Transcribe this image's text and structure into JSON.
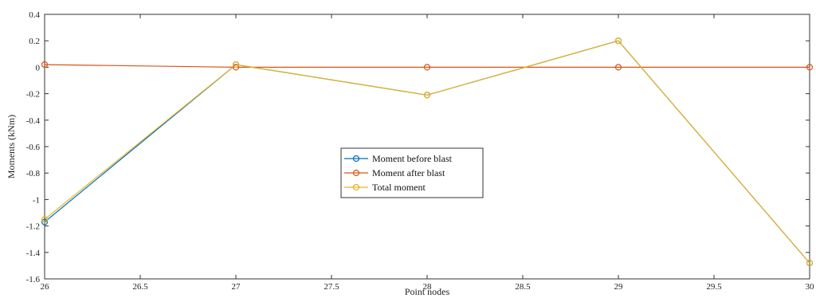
{
  "chart_data": {
    "type": "line",
    "title": "",
    "xlabel": "Point nodes",
    "ylabel": "Moments (kNm)",
    "xlim": [
      26,
      30
    ],
    "ylim": [
      -1.6,
      0.4
    ],
    "xticks": [
      "26",
      "26.5",
      "27",
      "27.5",
      "28",
      "28.5",
      "29",
      "29.5",
      "30"
    ],
    "yticks": [
      "0.4",
      "0.2",
      "0",
      "-0.2",
      "-0.4",
      "-0.6",
      "-0.8",
      "-1",
      "-1.2",
      "-1.4",
      "-1.6"
    ],
    "grid": false,
    "legend_position": "center",
    "x": [
      26,
      27,
      28,
      29,
      30
    ],
    "series": [
      {
        "name": "Moment before blast",
        "color": "#0072BD",
        "values": [
          -1.17,
          0.02,
          -0.21,
          0.2,
          -1.48
        ]
      },
      {
        "name": "Moment after blast",
        "color": "#D95319",
        "values": [
          0.02,
          0.0,
          0.0,
          0.0,
          0.0
        ]
      },
      {
        "name": "Total moment",
        "color": "#EDB120",
        "values": [
          -1.15,
          0.02,
          -0.21,
          0.2,
          -1.48
        ]
      }
    ]
  }
}
